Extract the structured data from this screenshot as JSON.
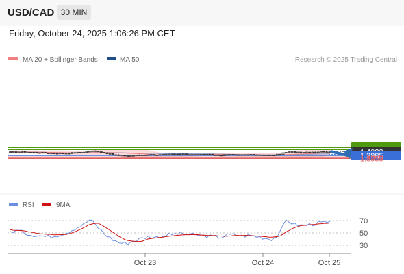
{
  "header": {
    "symbol": "USD/CAD",
    "timeframe": "30 MIN",
    "datetime": "Friday, October 24, 2025 1:06:26 PM CET"
  },
  "legend": {
    "ma20": "MA 20 + Bollinger Bands",
    "ma50": "MA 50",
    "credit": "Research © 2025 Trading Central"
  },
  "colors": {
    "green": "#4f9a0f",
    "blue": "#3a6fd8",
    "red": "#e06060",
    "dark": "#333333",
    "ma20": "#f08080",
    "ma50": "#7a8fba",
    "band": "#fbd4d4",
    "arrow": "#2f6db3",
    "rsi": "#6b8fe0",
    "rsi_ma": "#d11111"
  },
  "chart_data": [
    {
      "type": "candlestick",
      "title": "",
      "x_ticks": [
        "Oct 23",
        "Oct 24",
        "Oct 25"
      ],
      "indicators": [
        "MA 20 + Bollinger Bands",
        "MA 50"
      ],
      "levels": [
        {
          "value": 1.4065,
          "label": "1.4065",
          "style": "resistance",
          "color": "green"
        },
        {
          "value": 1.4045,
          "label": "1.4045",
          "style": "resistance",
          "color": "green"
        },
        {
          "value": 1.4023,
          "label": "1.4023",
          "style": "last",
          "color": "dark"
        },
        {
          "value": 1.3985,
          "label": "1.3985",
          "style": "pivot",
          "color": "blue"
        },
        {
          "value": 1.397,
          "label": "1.3970",
          "style": "support",
          "color": "red"
        },
        {
          "value": 1.3955,
          "label": "1.3955",
          "style": "support",
          "color": "red"
        }
      ],
      "y_range": [
        1.395,
        1.407
      ],
      "last_price": 1.4023,
      "arrow_target": 1.4065,
      "close_path": [
        1.4017,
        1.4018,
        1.4019,
        1.4016,
        1.4013,
        1.4008,
        1.4007,
        1.4005,
        1.4008,
        1.4011,
        1.4017,
        1.4028,
        1.4027,
        1.401,
        1.3994,
        1.3984,
        1.3981,
        1.3985,
        1.3989,
        1.3994,
        1.3991,
        1.3992,
        1.3995,
        1.3997,
        1.3995,
        1.3995,
        1.3994,
        1.3993,
        1.399,
        1.3986,
        1.3992,
        1.3992,
        1.3989,
        1.3991,
        1.3989,
        1.3986,
        1.3985,
        1.3995,
        1.4017,
        1.402,
        1.4017,
        1.4018,
        1.402,
        1.4022,
        1.4023
      ]
    },
    {
      "type": "line",
      "title": "",
      "series": [
        {
          "name": "RSI",
          "color": "rsi"
        },
        {
          "name": "9MA",
          "color": "rsi_ma"
        }
      ],
      "y_ticks": [
        30,
        50,
        70
      ],
      "y_range": [
        20,
        80
      ],
      "rsi_path": [
        52,
        54,
        50,
        47,
        46,
        44,
        45,
        48,
        52,
        58,
        63,
        72,
        60,
        48,
        40,
        34,
        33,
        37,
        41,
        44,
        43,
        45,
        47,
        49,
        48,
        47,
        46,
        45,
        44,
        43,
        47,
        47,
        45,
        46,
        44,
        42,
        40,
        47,
        72,
        64,
        62,
        63,
        65,
        67,
        66
      ],
      "ma_path": [
        55,
        54,
        53,
        51,
        49,
        48,
        47,
        47,
        48,
        52,
        58,
        64,
        66,
        60,
        52,
        44,
        38,
        36,
        36,
        40,
        42,
        43,
        45,
        46,
        47,
        47,
        47,
        46,
        46,
        45,
        45,
        46,
        46,
        46,
        45,
        44,
        43,
        44,
        52,
        58,
        62,
        63,
        64,
        65,
        66
      ]
    }
  ]
}
